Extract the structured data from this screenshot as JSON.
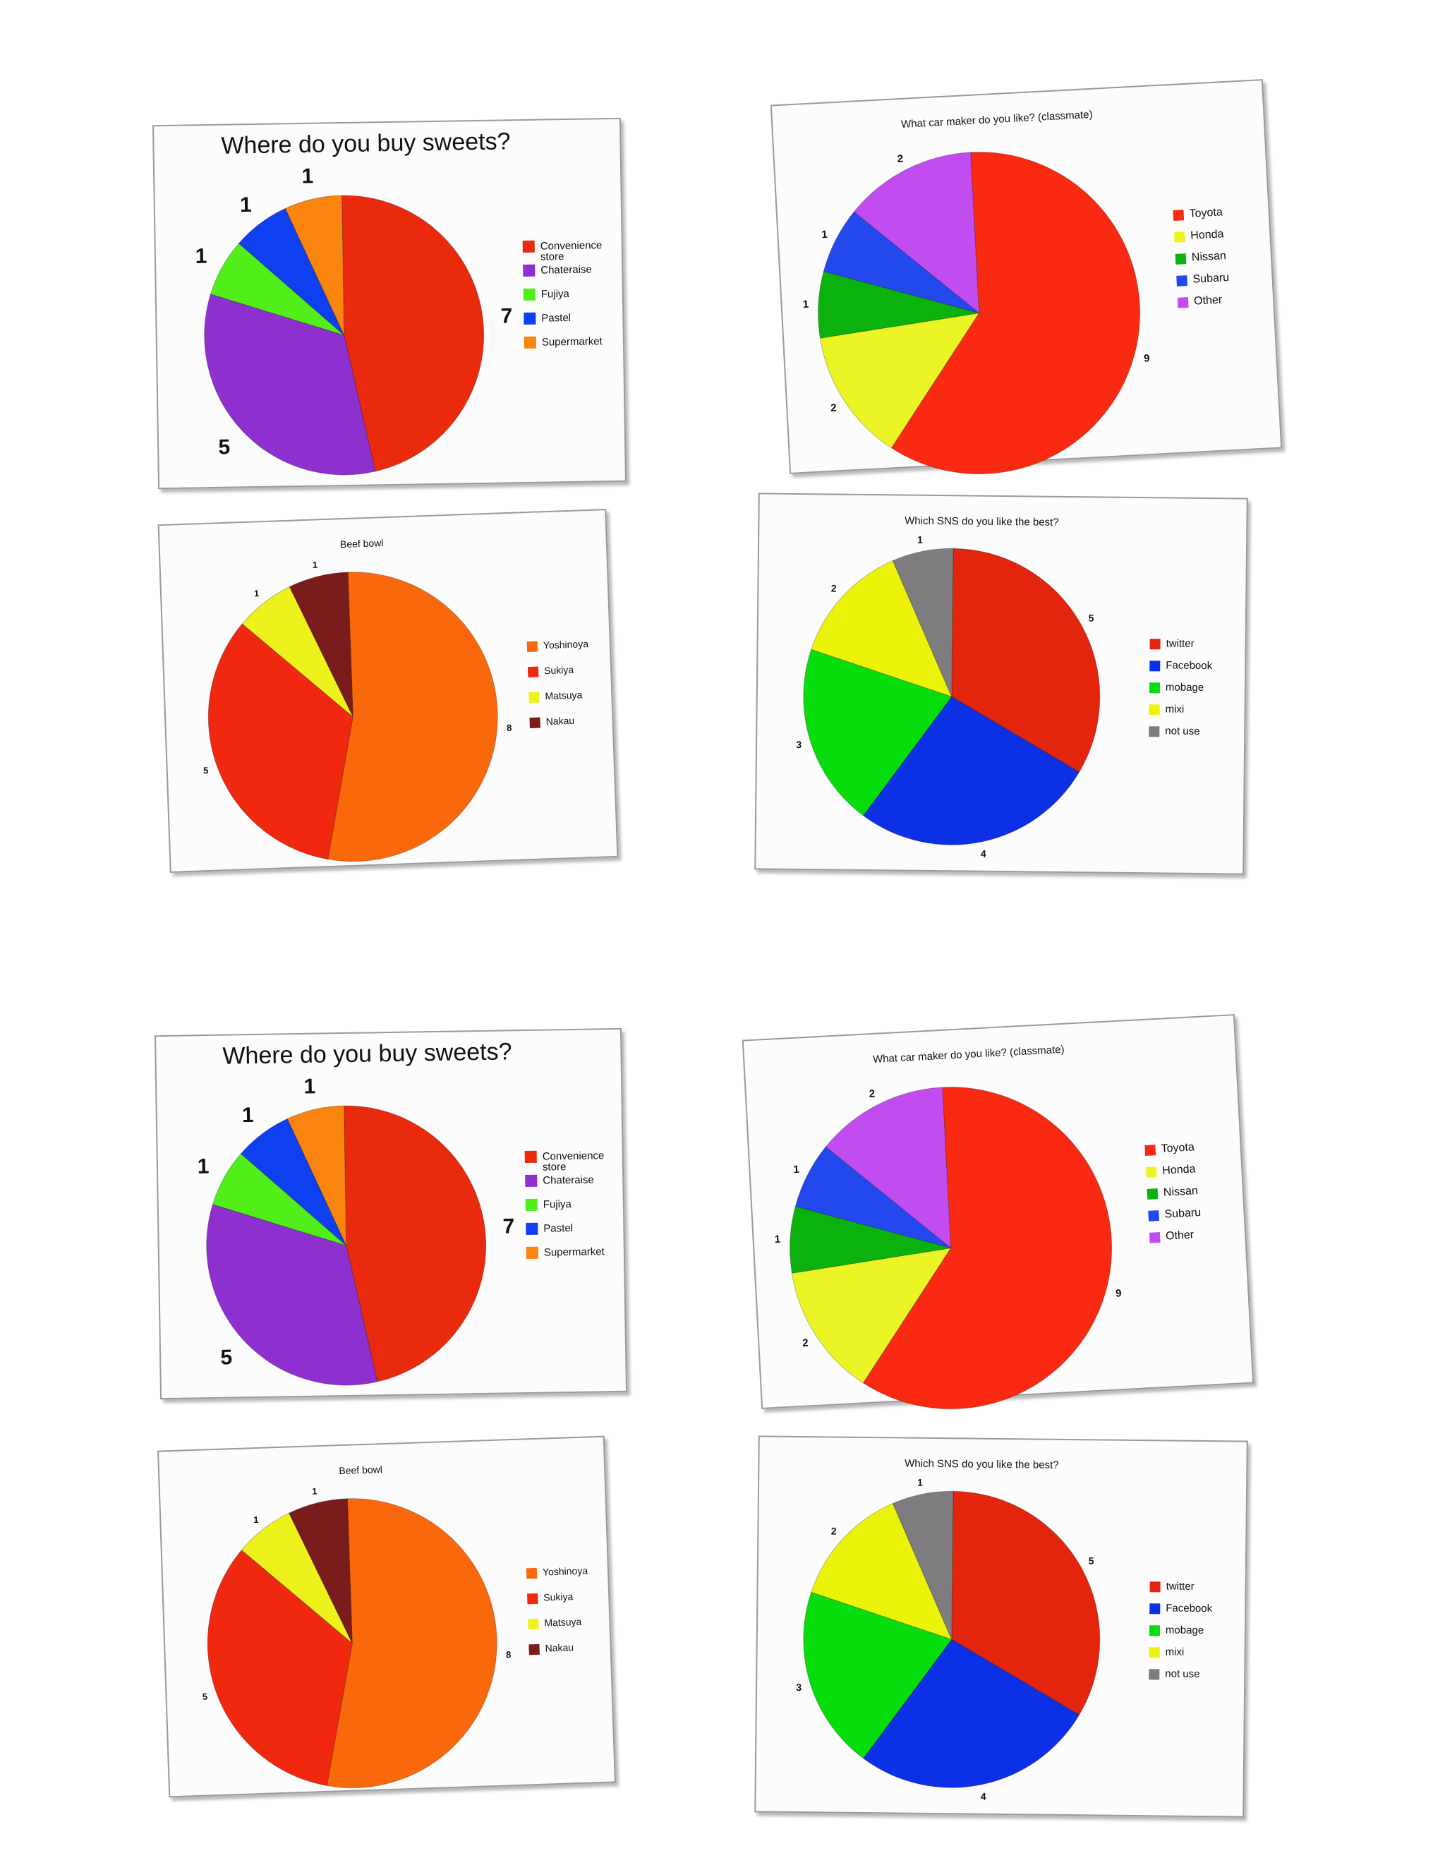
{
  "chart_data": [
    {
      "type": "pie",
      "title": "Where do you buy sweets?",
      "slices": [
        {
          "label": "Convenience store",
          "value": 7,
          "color": "#ea2a0c"
        },
        {
          "label": "Chateraise",
          "value": 5,
          "color": "#8e2fd0"
        },
        {
          "label": "Fujiya",
          "value": 1,
          "color": "#52ee1a"
        },
        {
          "label": "Pastel",
          "value": 1,
          "color": "#0e3ff0"
        },
        {
          "label": "Supermarket",
          "value": 1,
          "color": "#f9840e"
        }
      ],
      "data_labels": [
        "7",
        "5",
        "1",
        "1",
        "1"
      ],
      "legend_position": "right"
    },
    {
      "type": "pie",
      "title": "What car maker do you like? (classmate)",
      "slices": [
        {
          "label": "Toyota",
          "value": 9,
          "color": "#f92a11"
        },
        {
          "label": "Honda",
          "value": 2,
          "color": "#ebf526"
        },
        {
          "label": "Nissan",
          "value": 1,
          "color": "#0bb10d"
        },
        {
          "label": "Subaru",
          "value": 1,
          "color": "#2348ed"
        },
        {
          "label": "Other",
          "value": 2,
          "color": "#c14df1"
        }
      ],
      "data_labels": [
        "9",
        "2",
        "1",
        "1",
        "2"
      ],
      "legend_position": "right"
    },
    {
      "type": "pie",
      "title": "Beef bowl",
      "slices": [
        {
          "label": "Yoshinoya",
          "value": 8,
          "color": "#fa680c"
        },
        {
          "label": "Sukiya",
          "value": 5,
          "color": "#f02810"
        },
        {
          "label": "Matsuya",
          "value": 1,
          "color": "#eef21c"
        },
        {
          "label": "Nakau",
          "value": 1,
          "color": "#7a1c1c"
        }
      ],
      "data_labels": [
        "8",
        "5",
        "1",
        "1"
      ],
      "legend_position": "right"
    },
    {
      "type": "pie",
      "title": "Which SNS do you like the best?",
      "slices": [
        {
          "label": "twitter",
          "value": 5,
          "color": "#e4250d"
        },
        {
          "label": "Facebook",
          "value": 4,
          "color": "#0c30e6"
        },
        {
          "label": "mobage",
          "value": 3,
          "color": "#07dc0c"
        },
        {
          "label": "mixi",
          "value": 2,
          "color": "#ebf30b"
        },
        {
          "label": "not use",
          "value": 1,
          "color": "#7e7c7e"
        }
      ],
      "data_labels": [
        "5",
        "4",
        "3",
        "2",
        "1"
      ],
      "legend_position": "right"
    },
    {
      "type": "pie",
      "title": "Where do you buy sweets?",
      "slices": [
        {
          "label": "Convenience store",
          "value": 7,
          "color": "#ea2a0c"
        },
        {
          "label": "Chateraise",
          "value": 5,
          "color": "#8e2fd0"
        },
        {
          "label": "Fujiya",
          "value": 1,
          "color": "#52ee1a"
        },
        {
          "label": "Pastel",
          "value": 1,
          "color": "#0e3ff0"
        },
        {
          "label": "Supermarket",
          "value": 1,
          "color": "#f9840e"
        }
      ],
      "data_labels": [
        "7",
        "5",
        "1",
        "1",
        "1"
      ],
      "legend_position": "right"
    },
    {
      "type": "pie",
      "title": "What car maker do you like? (classmate)",
      "slices": [
        {
          "label": "Toyota",
          "value": 9,
          "color": "#f92a11"
        },
        {
          "label": "Honda",
          "value": 2,
          "color": "#ebf526"
        },
        {
          "label": "Nissan",
          "value": 1,
          "color": "#0bb10d"
        },
        {
          "label": "Subaru",
          "value": 1,
          "color": "#2348ed"
        },
        {
          "label": "Other",
          "value": 2,
          "color": "#c14df1"
        }
      ],
      "data_labels": [
        "9",
        "2",
        "1",
        "1",
        "2"
      ],
      "legend_position": "right"
    },
    {
      "type": "pie",
      "title": "Beef bowl",
      "slices": [
        {
          "label": "Yoshinoya",
          "value": 8,
          "color": "#fa680c"
        },
        {
          "label": "Sukiya",
          "value": 5,
          "color": "#f02810"
        },
        {
          "label": "Matsuya",
          "value": 1,
          "color": "#eef21c"
        },
        {
          "label": "Nakau",
          "value": 1,
          "color": "#7a1c1c"
        }
      ],
      "data_labels": [
        "8",
        "5",
        "1",
        "1"
      ],
      "legend_position": "right"
    },
    {
      "type": "pie",
      "title": "Which SNS do you like the best?",
      "slices": [
        {
          "label": "twitter",
          "value": 5,
          "color": "#e4250d"
        },
        {
          "label": "Facebook",
          "value": 4,
          "color": "#0c30e6"
        },
        {
          "label": "mobage",
          "value": 3,
          "color": "#07dc0c"
        },
        {
          "label": "mixi",
          "value": 2,
          "color": "#ebf30b"
        },
        {
          "label": "not use",
          "value": 1,
          "color": "#7e7c7e"
        }
      ],
      "data_labels": [
        "5",
        "4",
        "3",
        "2",
        "1"
      ],
      "legend_position": "right"
    }
  ]
}
